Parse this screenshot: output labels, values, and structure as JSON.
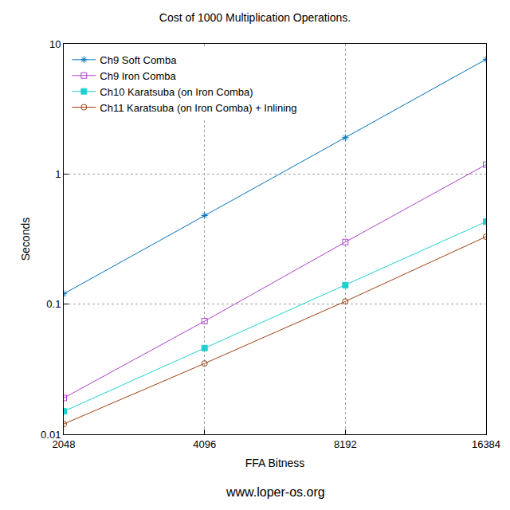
{
  "chart_data": {
    "type": "line",
    "title": "Cost of 1000 Multiplication Operations.",
    "x_label": "FFA Bitness",
    "y_label": "Seconds",
    "annotations": [
      "www.loper-os.org"
    ],
    "x": [
      2048,
      4096,
      8192,
      16384
    ],
    "series": [
      {
        "name": "Ch9 Soft Comba",
        "color": "#0072bd",
        "marker": "asterisk",
        "line_style": "solid",
        "values": [
          0.12,
          0.48,
          1.9,
          7.6
        ]
      },
      {
        "name": "Ch9 Iron Comba",
        "color": "#b040d0",
        "marker": "square-open",
        "line_style": "solid",
        "values": [
          0.019,
          0.074,
          0.3,
          1.18
        ]
      },
      {
        "name": "Ch10 Karatsuba (on Iron Comba)",
        "color": "#20d0d0",
        "marker": "square",
        "line_style": "solid",
        "values": [
          0.015,
          0.046,
          0.14,
          0.43
        ]
      },
      {
        "name": "Ch11 Karatsuba (on Iron Comba) + Inlining",
        "color": "#a04010",
        "marker": "circle-open",
        "line_style": "solid",
        "values": [
          0.012,
          0.035,
          0.105,
          0.33
        ]
      }
    ],
    "xlim": [
      2048,
      16384
    ],
    "xticks": [
      2048,
      4096,
      8192,
      16384
    ],
    "ylim": [
      0.01,
      10
    ],
    "yticks": [
      0.01,
      0.1,
      1,
      10
    ],
    "log": true,
    "grid": true,
    "legend": "upper left"
  }
}
